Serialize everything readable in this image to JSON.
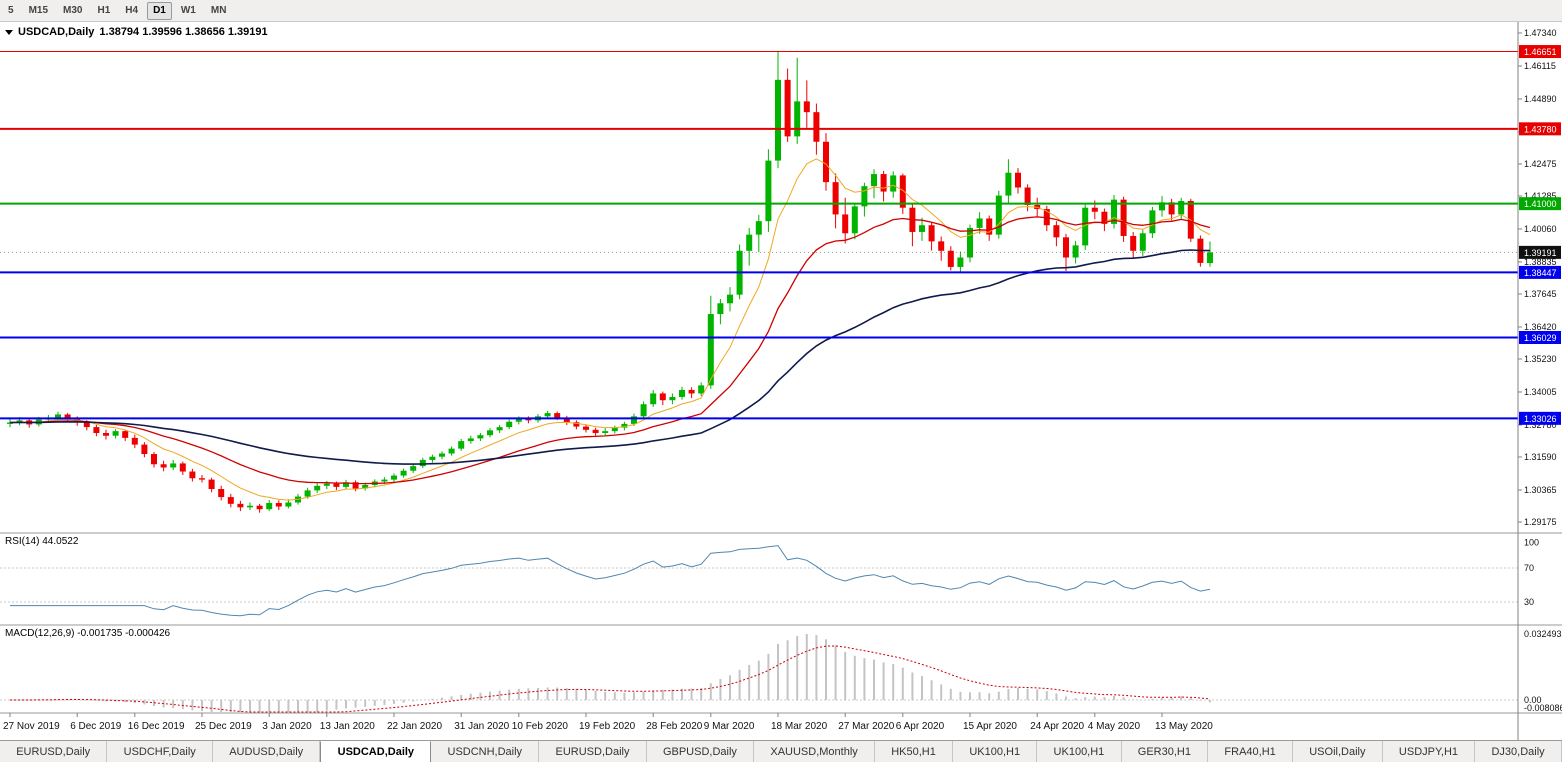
{
  "toolbar": {
    "timeframes": [
      {
        "label": "5",
        "active": false
      },
      {
        "label": "M15",
        "active": false
      },
      {
        "label": "M30",
        "active": false
      },
      {
        "label": "H1",
        "active": false
      },
      {
        "label": "H4",
        "active": false
      },
      {
        "label": "D1",
        "active": true
      },
      {
        "label": "W1",
        "active": false
      },
      {
        "label": "MN",
        "active": false
      }
    ]
  },
  "main_chart": {
    "title_symbol": "USDCAD,Daily",
    "title_ohlc": "1.38794 1.39596 1.38656 1.39191"
  },
  "rsi_panel": {
    "label": "RSI(14) 44.0522",
    "period": 14,
    "levels": [
      70,
      30
    ],
    "axis_labels": [
      "100",
      "70",
      "30"
    ]
  },
  "macd_panel": {
    "label": "MACD(12,26,9) -0.001735 -0.000426",
    "fast": 12,
    "slow": 26,
    "signal": 9,
    "axis_labels": [
      "0.032493",
      "0.00",
      "-0.008086"
    ]
  },
  "price_axis": {
    "top_value": 1.4734,
    "bottom_value": 1.29175,
    "ticks": [
      "1.47340",
      "1.46115",
      "1.44890",
      "1.43665",
      "1.42475",
      "1.41285",
      "1.40060",
      "1.38835",
      "1.37645",
      "1.36420",
      "1.35230",
      "1.34005",
      "1.32780",
      "1.31590",
      "1.30365",
      "1.29175"
    ]
  },
  "hlines": [
    {
      "value": 1.46651,
      "label": "1.46651",
      "color": "#e60000",
      "width": 1
    },
    {
      "value": 1.4378,
      "label": "1.43780",
      "color": "#e60000",
      "width": 2
    },
    {
      "value": 1.41,
      "label": "1.41000",
      "color": "#00a800",
      "width": 2
    },
    {
      "value": 1.38447,
      "label": "1.38447",
      "color": "#0000ee",
      "width": 2
    },
    {
      "value": 1.36029,
      "label": "1.36029",
      "color": "#0000ee",
      "width": 2
    },
    {
      "value": 1.33026,
      "label": "1.33026",
      "color": "#0000ee",
      "width": 2
    }
  ],
  "current_price": {
    "value": 1.39191,
    "label": "1.39191"
  },
  "time_axis": [
    {
      "index": 0,
      "label": "27 Nov 2019"
    },
    {
      "index": 7,
      "label": "6 Dec 2019"
    },
    {
      "index": 13,
      "label": "16 Dec 2019"
    },
    {
      "index": 20,
      "label": "25 Dec 2019"
    },
    {
      "index": 27,
      "label": "3 Jan 2020"
    },
    {
      "index": 33,
      "label": "13 Jan 2020"
    },
    {
      "index": 40,
      "label": "22 Jan 2020"
    },
    {
      "index": 47,
      "label": "31 Jan 2020"
    },
    {
      "index": 53,
      "label": "10 Feb 2020"
    },
    {
      "index": 60,
      "label": "19 Feb 2020"
    },
    {
      "index": 67,
      "label": "28 Feb 2020"
    },
    {
      "index": 73,
      "label": "9 Mar 2020"
    },
    {
      "index": 80,
      "label": "18 Mar 2020"
    },
    {
      "index": 87,
      "label": "27 Mar 2020"
    },
    {
      "index": 93,
      "label": "6 Apr 2020"
    },
    {
      "index": 100,
      "label": "15 Apr 2020"
    },
    {
      "index": 107,
      "label": "24 Apr 2020"
    },
    {
      "index": 113,
      "label": "4 May 2020"
    },
    {
      "index": 120,
      "label": "13 May 2020"
    }
  ],
  "moving_averages": [
    {
      "period": 8,
      "color": "#efa820",
      "width": 1
    },
    {
      "period": 21,
      "color": "#d10000",
      "width": 1.3
    },
    {
      "period": 55,
      "color": "#101a4d",
      "width": 1.6
    }
  ],
  "colors": {
    "candle_up": "#00b400",
    "candle_down": "#ee0000",
    "rsi_line": "#4f86b0",
    "macd_hist": "#c4c4c4",
    "macd_signal": "#cc0000",
    "current_badge": "#101010",
    "grid": "#c8c8c8",
    "axis_line": "#808080"
  },
  "chart_data": {
    "type": "candlestick",
    "symbol": "USDCAD",
    "period": "Daily",
    "ohlc_display": {
      "open": 1.38794,
      "high": 1.39596,
      "low": 1.38656,
      "close": 1.39191
    },
    "candles": [
      [
        1.3282,
        1.3301,
        1.327,
        1.3287
      ],
      [
        1.3287,
        1.3307,
        1.3277,
        1.3295
      ],
      [
        1.3295,
        1.3302,
        1.3268,
        1.328
      ],
      [
        1.328,
        1.3308,
        1.3272,
        1.3298
      ],
      [
        1.3298,
        1.3315,
        1.3288,
        1.3305
      ],
      [
        1.3305,
        1.3327,
        1.3296,
        1.3317
      ],
      [
        1.3317,
        1.3322,
        1.3288,
        1.33
      ],
      [
        1.33,
        1.331,
        1.3275,
        1.3288
      ],
      [
        1.3288,
        1.3296,
        1.3258,
        1.327
      ],
      [
        1.327,
        1.3278,
        1.3236,
        1.3248
      ],
      [
        1.3248,
        1.326,
        1.3224,
        1.3238
      ],
      [
        1.3238,
        1.3262,
        1.3228,
        1.3255
      ],
      [
        1.3255,
        1.3261,
        1.3218,
        1.323
      ],
      [
        1.323,
        1.3242,
        1.3192,
        1.3205
      ],
      [
        1.3205,
        1.3214,
        1.3158,
        1.317
      ],
      [
        1.317,
        1.3178,
        1.312,
        1.3132
      ],
      [
        1.3132,
        1.3145,
        1.3106,
        1.312
      ],
      [
        1.312,
        1.3148,
        1.311,
        1.3135
      ],
      [
        1.3135,
        1.3142,
        1.3092,
        1.3105
      ],
      [
        1.3105,
        1.3115,
        1.3068,
        1.308
      ],
      [
        1.308,
        1.3092,
        1.3064,
        1.3075
      ],
      [
        1.3075,
        1.3082,
        1.3028,
        1.304
      ],
      [
        1.304,
        1.3052,
        1.2998,
        1.301
      ],
      [
        1.301,
        1.3022,
        1.2972,
        1.2985
      ],
      [
        1.2985,
        1.2996,
        1.2958,
        1.2972
      ],
      [
        1.2972,
        1.299,
        1.2962,
        1.2978
      ],
      [
        1.2978,
        1.2985,
        1.2952,
        1.2965
      ],
      [
        1.2965,
        1.2999,
        1.2958,
        1.2988
      ],
      [
        1.2988,
        1.2998,
        1.2962,
        1.2975
      ],
      [
        1.2975,
        1.3002,
        1.2968,
        1.299
      ],
      [
        1.299,
        1.3022,
        1.2982,
        1.3012
      ],
      [
        1.3012,
        1.3045,
        1.3004,
        1.3035
      ],
      [
        1.3035,
        1.3062,
        1.3025,
        1.3052
      ],
      [
        1.3052,
        1.307,
        1.304,
        1.306
      ],
      [
        1.306,
        1.3068,
        1.3036,
        1.3048
      ],
      [
        1.3048,
        1.3074,
        1.304,
        1.3065
      ],
      [
        1.3065,
        1.3072,
        1.3032,
        1.3042
      ],
      [
        1.3042,
        1.3064,
        1.3034,
        1.3055
      ],
      [
        1.3055,
        1.3076,
        1.3046,
        1.3068
      ],
      [
        1.3068,
        1.3084,
        1.3058,
        1.3075
      ],
      [
        1.3075,
        1.3098,
        1.3066,
        1.309
      ],
      [
        1.309,
        1.3116,
        1.3082,
        1.3108
      ],
      [
        1.3108,
        1.3133,
        1.31,
        1.3125
      ],
      [
        1.3125,
        1.3156,
        1.3118,
        1.3148
      ],
      [
        1.3148,
        1.3168,
        1.3138,
        1.316
      ],
      [
        1.316,
        1.318,
        1.315,
        1.3172
      ],
      [
        1.3172,
        1.3198,
        1.3164,
        1.319
      ],
      [
        1.319,
        1.3226,
        1.3182,
        1.3218
      ],
      [
        1.3218,
        1.3238,
        1.3208,
        1.3228
      ],
      [
        1.3228,
        1.3248,
        1.3218,
        1.324
      ],
      [
        1.324,
        1.3266,
        1.3232,
        1.3258
      ],
      [
        1.3258,
        1.3278,
        1.3248,
        1.327
      ],
      [
        1.327,
        1.3298,
        1.3262,
        1.329
      ],
      [
        1.329,
        1.331,
        1.328,
        1.3302
      ],
      [
        1.3302,
        1.331,
        1.3284,
        1.3295
      ],
      [
        1.3295,
        1.3318,
        1.3286,
        1.331
      ],
      [
        1.331,
        1.333,
        1.33,
        1.3322
      ],
      [
        1.3322,
        1.3328,
        1.3296,
        1.3305
      ],
      [
        1.3305,
        1.3312,
        1.3278,
        1.3288
      ],
      [
        1.3288,
        1.3295,
        1.3262,
        1.3272
      ],
      [
        1.3272,
        1.328,
        1.325,
        1.326
      ],
      [
        1.326,
        1.3268,
        1.3238,
        1.3248
      ],
      [
        1.3248,
        1.3266,
        1.324,
        1.3255
      ],
      [
        1.3255,
        1.3276,
        1.3246,
        1.3268
      ],
      [
        1.3268,
        1.329,
        1.3258,
        1.3282
      ],
      [
        1.3282,
        1.332,
        1.3274,
        1.331
      ],
      [
        1.331,
        1.3365,
        1.3302,
        1.3355
      ],
      [
        1.3355,
        1.3408,
        1.3345,
        1.3395
      ],
      [
        1.3395,
        1.3402,
        1.3352,
        1.337
      ],
      [
        1.337,
        1.3395,
        1.3355,
        1.3382
      ],
      [
        1.3382,
        1.342,
        1.3372,
        1.3408
      ],
      [
        1.3408,
        1.3418,
        1.3378,
        1.3395
      ],
      [
        1.3395,
        1.3436,
        1.3385,
        1.3425
      ],
      [
        1.3425,
        1.3758,
        1.3412,
        1.369
      ],
      [
        1.369,
        1.3746,
        1.3652,
        1.373
      ],
      [
        1.373,
        1.379,
        1.37,
        1.3762
      ],
      [
        1.3762,
        1.3948,
        1.3745,
        1.3925
      ],
      [
        1.3925,
        1.401,
        1.387,
        1.3985
      ],
      [
        1.3985,
        1.4058,
        1.392,
        1.4035
      ],
      [
        1.4035,
        1.4302,
        1.3995,
        1.426
      ],
      [
        1.426,
        1.4668,
        1.4232,
        1.456
      ],
      [
        1.456,
        1.4602,
        1.433,
        1.435
      ],
      [
        1.435,
        1.4642,
        1.4322,
        1.448
      ],
      [
        1.448,
        1.4558,
        1.4382,
        1.444
      ],
      [
        1.444,
        1.4472,
        1.4282,
        1.433
      ],
      [
        1.433,
        1.4362,
        1.4148,
        1.418
      ],
      [
        1.418,
        1.4212,
        1.4008,
        1.406
      ],
      [
        1.406,
        1.4122,
        1.3952,
        1.399
      ],
      [
        1.399,
        1.4102,
        1.3968,
        1.409
      ],
      [
        1.409,
        1.4178,
        1.4052,
        1.4165
      ],
      [
        1.4165,
        1.4228,
        1.412,
        1.421
      ],
      [
        1.421,
        1.4222,
        1.4108,
        1.4145
      ],
      [
        1.4145,
        1.422,
        1.4122,
        1.4205
      ],
      [
        1.4205,
        1.4212,
        1.4062,
        1.4085
      ],
      [
        1.4085,
        1.4098,
        1.3942,
        1.3995
      ],
      [
        1.3995,
        1.4048,
        1.3962,
        1.402
      ],
      [
        1.402,
        1.4032,
        1.3926,
        1.396
      ],
      [
        1.396,
        1.3978,
        1.3888,
        1.3925
      ],
      [
        1.3925,
        1.3942,
        1.3852,
        1.3865
      ],
      [
        1.3865,
        1.3922,
        1.3846,
        1.39
      ],
      [
        1.39,
        1.4022,
        1.3882,
        1.401
      ],
      [
        1.401,
        1.4068,
        1.3988,
        1.4045
      ],
      [
        1.4045,
        1.4056,
        1.3962,
        1.3985
      ],
      [
        1.3985,
        1.4148,
        1.397,
        1.413
      ],
      [
        1.413,
        1.4265,
        1.4102,
        1.4215
      ],
      [
        1.4215,
        1.4232,
        1.4138,
        1.416
      ],
      [
        1.416,
        1.4172,
        1.4072,
        1.4095
      ],
      [
        1.4095,
        1.4122,
        1.4052,
        1.408
      ],
      [
        1.408,
        1.4092,
        1.3998,
        1.402
      ],
      [
        1.402,
        1.4035,
        1.3942,
        1.3975
      ],
      [
        1.3975,
        1.3988,
        1.385,
        1.39
      ],
      [
        1.39,
        1.3962,
        1.3878,
        1.3945
      ],
      [
        1.3945,
        1.4098,
        1.3928,
        1.4085
      ],
      [
        1.4085,
        1.4112,
        1.4042,
        1.407
      ],
      [
        1.407,
        1.4082,
        1.3998,
        1.4025
      ],
      [
        1.4025,
        1.4132,
        1.4008,
        1.4115
      ],
      [
        1.4115,
        1.4126,
        1.3958,
        1.398
      ],
      [
        1.398,
        1.3995,
        1.3898,
        1.3925
      ],
      [
        1.3925,
        1.4002,
        1.3906,
        1.399
      ],
      [
        1.399,
        1.4088,
        1.3972,
        1.4075
      ],
      [
        1.4075,
        1.4128,
        1.4052,
        1.4105
      ],
      [
        1.4105,
        1.4118,
        1.4038,
        1.406
      ],
      [
        1.406,
        1.4122,
        1.4042,
        1.411
      ],
      [
        1.411,
        1.4118,
        1.3958,
        1.397
      ],
      [
        1.397,
        1.3982,
        1.3866,
        1.388
      ],
      [
        1.38794,
        1.39596,
        1.38656,
        1.39191
      ]
    ]
  },
  "tabs": [
    {
      "label": "EURUSD,Daily",
      "active": false
    },
    {
      "label": "USDCHF,Daily",
      "active": false
    },
    {
      "label": "AUDUSD,Daily",
      "active": false
    },
    {
      "label": "USDCAD,Daily",
      "active": true
    },
    {
      "label": "USDCNH,Daily",
      "active": false
    },
    {
      "label": "EURUSD,Daily",
      "active": false
    },
    {
      "label": "GBPUSD,Daily",
      "active": false
    },
    {
      "label": "XAUUSD,Monthly",
      "active": false
    },
    {
      "label": "HK50,H1",
      "active": false
    },
    {
      "label": "UK100,H1",
      "active": false
    },
    {
      "label": "UK100,H1",
      "active": false
    },
    {
      "label": "GER30,H1",
      "active": false
    },
    {
      "label": "FRA40,H1",
      "active": false
    },
    {
      "label": "USOil,Daily",
      "active": false
    },
    {
      "label": "USDJPY,H1",
      "active": false
    },
    {
      "label": "DJ30,Daily",
      "active": false
    }
  ]
}
